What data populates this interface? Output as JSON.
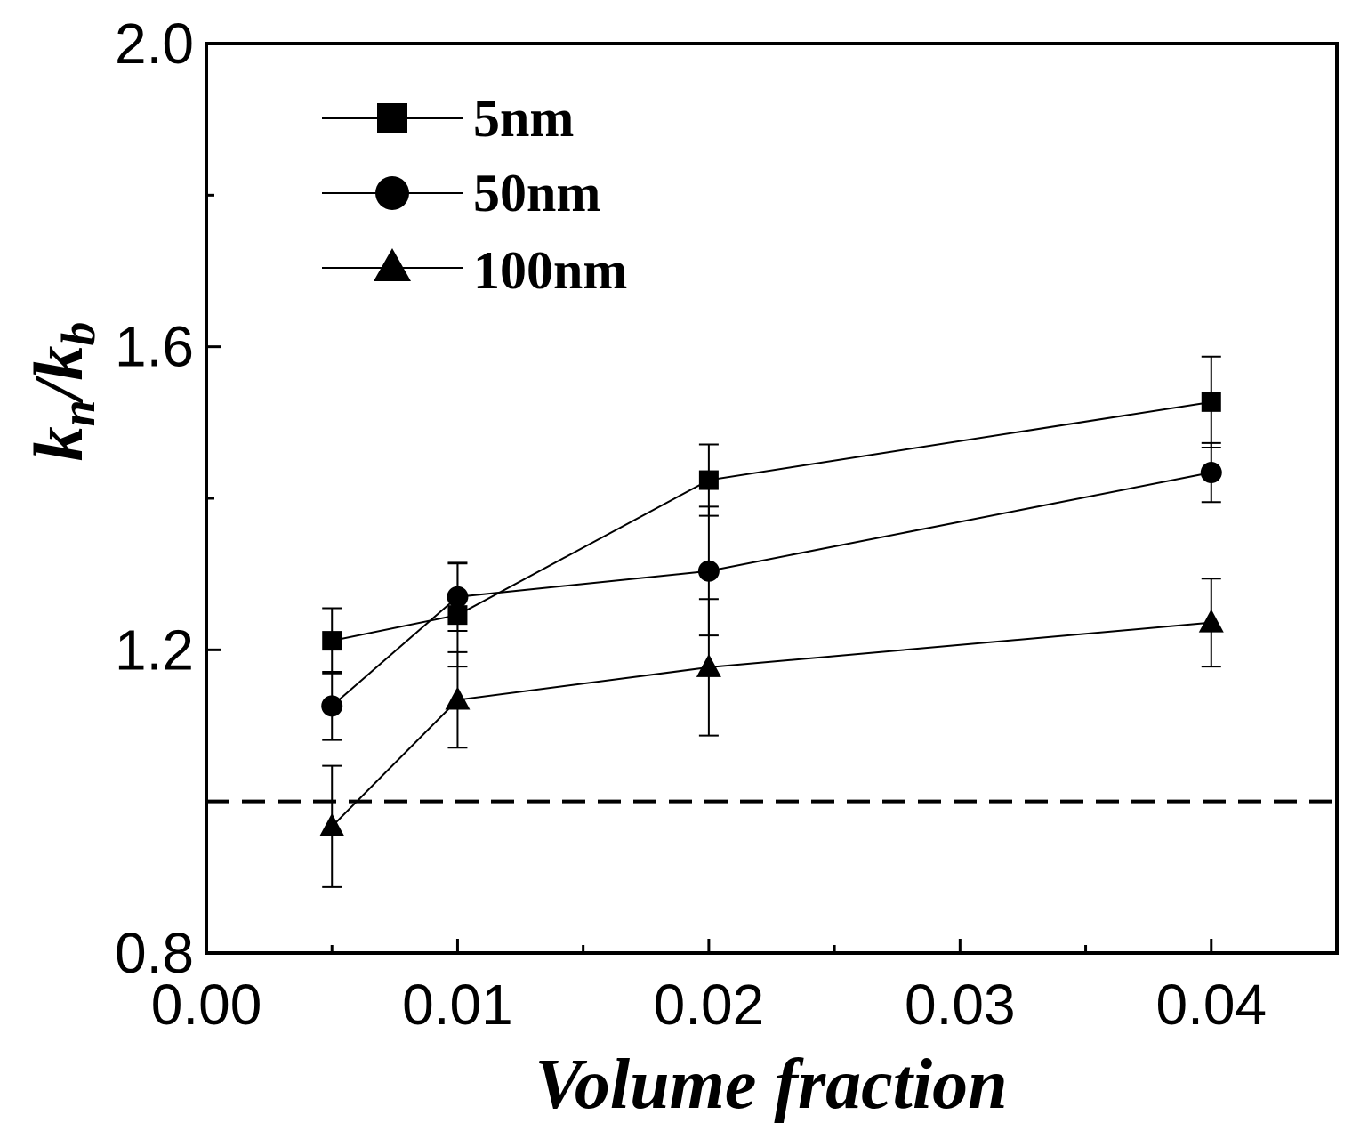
{
  "chart_data": {
    "type": "line",
    "title": "",
    "xlabel": "Volume fraction",
    "ylabel": "k",
    "ylabel_sub_n": "n",
    "ylabel_slash": "/",
    "ylabel_k": "k",
    "ylabel_sub_b": "b",
    "xlim": [
      0.0,
      0.045
    ],
    "ylim": [
      0.8,
      2.0
    ],
    "x_ticks": [
      0.0,
      0.01,
      0.02,
      0.03,
      0.04
    ],
    "x_tick_labels": [
      "0.00",
      "0.01",
      "0.02",
      "0.03",
      "0.04"
    ],
    "x_minor_ticks": [
      0.005,
      0.015,
      0.025,
      0.035
    ],
    "y_ticks": [
      0.8,
      1.2,
      1.6,
      2.0
    ],
    "y_tick_labels": [
      "0.8",
      "1.2",
      "1.6",
      "2.0"
    ],
    "y_minor_ticks": [
      1.0,
      1.4,
      1.8
    ],
    "reference_line": {
      "y": 1.0,
      "style": "dashed"
    },
    "legend_position": "top-left",
    "series": [
      {
        "name": "5nm",
        "marker": "square",
        "x": [
          0.005,
          0.01,
          0.02,
          0.04
        ],
        "y": [
          1.212,
          1.246,
          1.424,
          1.527
        ],
        "err": [
          0.043,
          0.068,
          0.047,
          0.06
        ]
      },
      {
        "name": "50nm",
        "marker": "circle",
        "x": [
          0.005,
          0.01,
          0.02,
          0.04
        ],
        "y": [
          1.126,
          1.27,
          1.304,
          1.434
        ],
        "err": [
          0.045,
          0.045,
          0.085,
          0.039
        ]
      },
      {
        "name": "100nm",
        "marker": "triangle",
        "x": [
          0.005,
          0.01,
          0.02,
          0.04
        ],
        "y": [
          0.967,
          1.134,
          1.177,
          1.236
        ],
        "err": [
          0.08,
          0.063,
          0.09,
          0.058
        ]
      }
    ]
  }
}
